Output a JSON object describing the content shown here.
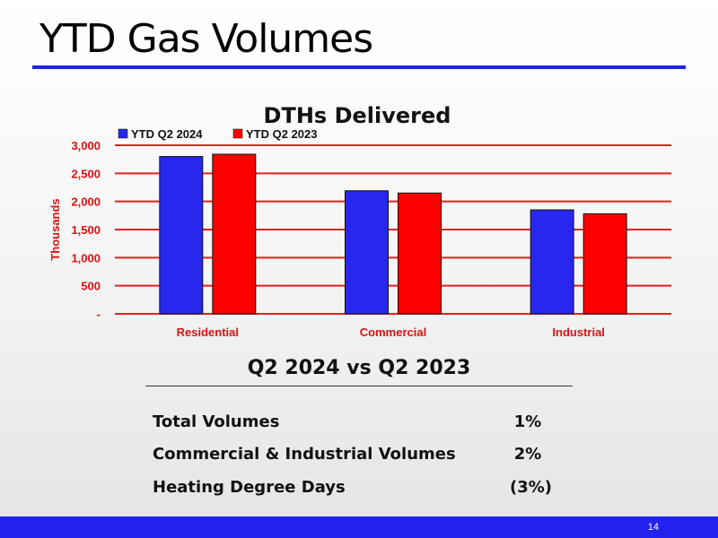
{
  "slide": {
    "title": "YTD Gas Volumes",
    "page_number": "14"
  },
  "colors": {
    "accent_blue": "#2222ee",
    "series_blue": "#2727ee",
    "series_red": "#ff0000",
    "gridline": "#e02020",
    "label_red": "#dd1111"
  },
  "chart_data": {
    "type": "bar",
    "title": "DTHs Delivered",
    "ylabel": "Thousands",
    "xlabel": "",
    "categories": [
      "Residential",
      "Commercial",
      "Industrial"
    ],
    "series": [
      {
        "name": "YTD Q2 2024",
        "values": [
          2800,
          2190,
          1850
        ]
      },
      {
        "name": "YTD Q2 2023",
        "values": [
          2840,
          2150,
          1780
        ]
      }
    ],
    "ylim": [
      0,
      3000
    ],
    "yticks": [
      0,
      500,
      1000,
      1500,
      2000,
      2500,
      3000
    ],
    "ytick_labels": [
      "-",
      "500",
      "1,000",
      "1,500",
      "2,000",
      "2,500",
      "3,000"
    ],
    "grid": true,
    "legend_position": "top-left"
  },
  "comparison": {
    "heading": "Q2 2024 vs Q2 2023",
    "rows": [
      {
        "metric": "Total Volumes",
        "value": "1%"
      },
      {
        "metric": "Commercial & Industrial Volumes",
        "value": "2%"
      },
      {
        "metric": "Heating Degree Days",
        "value": "(3%)"
      }
    ]
  }
}
